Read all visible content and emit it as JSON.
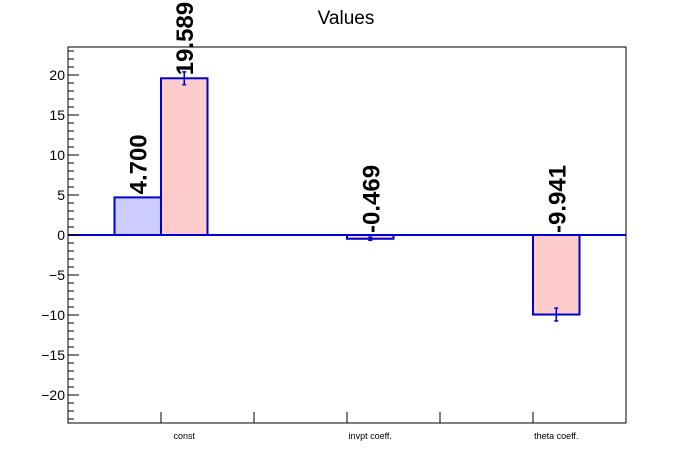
{
  "chart_data": {
    "type": "bar",
    "title": "Values",
    "xlabel": "",
    "ylabel": "",
    "categories": [
      "const",
      "invpt coeff.",
      "theta coeff."
    ],
    "ylim": [
      -23.5,
      23.5
    ],
    "yticks": [
      -20,
      -15,
      -10,
      -5,
      0,
      5,
      10,
      15,
      20
    ],
    "ytick_labels": [
      "−20",
      "−15",
      "−10",
      "−5",
      "0",
      "5",
      "10",
      "15",
      "20"
    ],
    "grid": false,
    "series": [
      {
        "values": [
          4.7,
          null,
          null
        ],
        "errors": [
          0,
          null,
          null
        ],
        "labels": [
          "4.700",
          "",
          ""
        ],
        "fill": "#ccccff",
        "stroke": "#0000cc"
      },
      {
        "values": [
          19.589,
          -0.469,
          -9.941
        ],
        "errors": [
          0.8,
          0.2,
          0.8
        ],
        "labels": [
          "19.589",
          "-0.469",
          "-9.941"
        ],
        "fill": "#ffcccc",
        "stroke": "#0000cc"
      }
    ],
    "colors": {
      "axis": "#000000",
      "zero_line": "#0000cc",
      "bar_stroke": "#0000cc"
    }
  }
}
